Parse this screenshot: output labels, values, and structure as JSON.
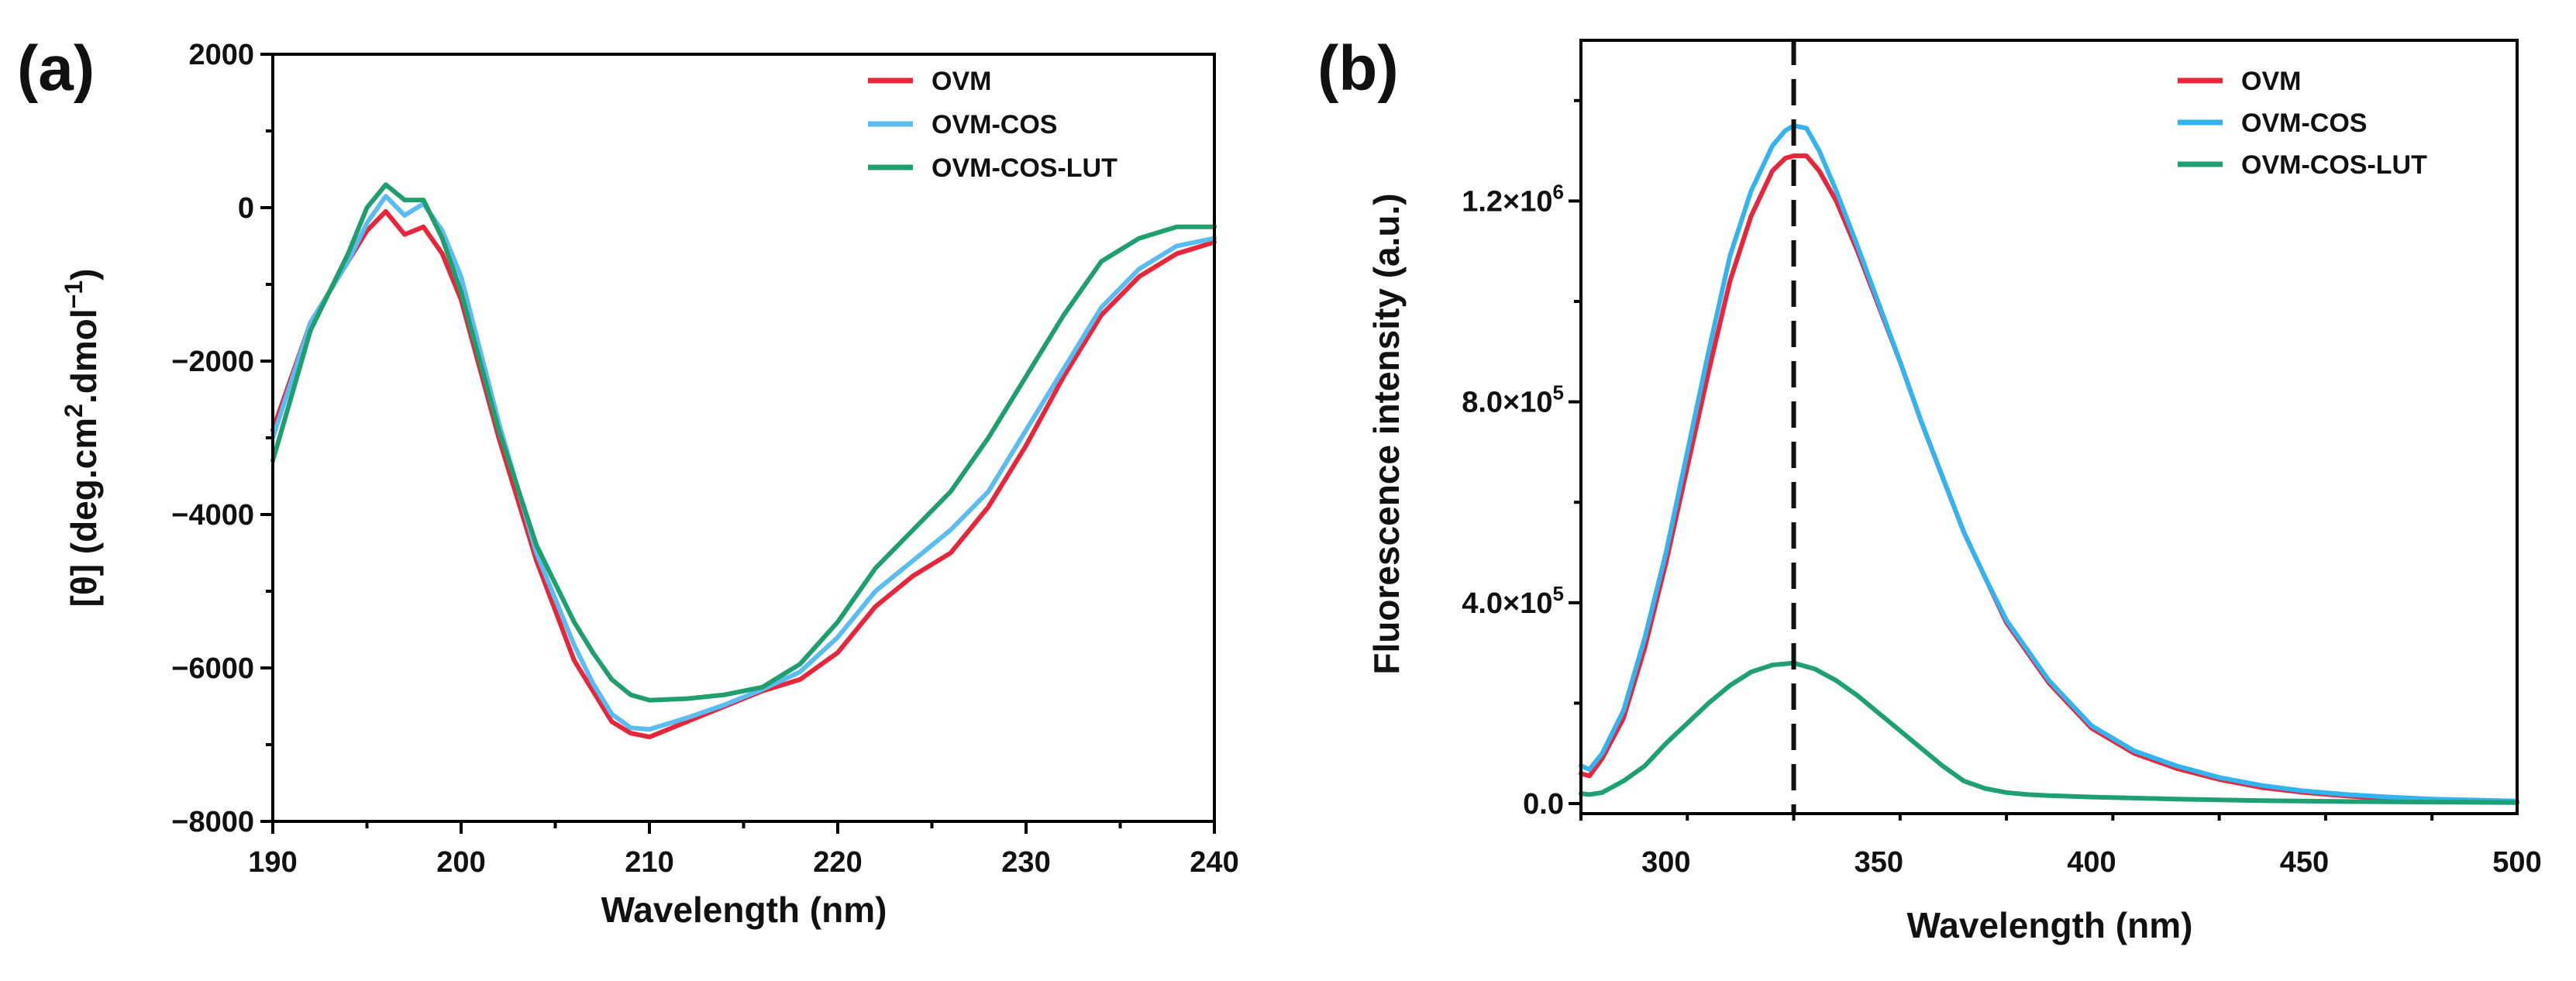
{
  "chart_data": [
    {
      "panel_label": "(a)",
      "type": "line",
      "xlabel": "Wavelength (nm)",
      "ylabel_parts": [
        "[θ] (deg.cm",
        "2",
        ".dmol",
        "−1",
        ")"
      ],
      "xlim": [
        190,
        240
      ],
      "ylim": [
        -8000,
        2000
      ],
      "xticks": [
        190,
        200,
        210,
        220,
        230,
        240
      ],
      "yticks": [
        -8000,
        -6000,
        -4000,
        -2000,
        0,
        2000
      ],
      "xtick_labels": [
        "190",
        "200",
        "210",
        "220",
        "230",
        "240"
      ],
      "ytick_labels": [
        "−8000",
        "−6000",
        "−4000",
        "−2000",
        "0",
        "2000"
      ],
      "legend_position": "top-right",
      "series": [
        {
          "name": "OVM",
          "color": "#e8253a",
          "x": [
            190,
            192,
            194,
            195,
            196,
            197,
            198,
            199,
            200,
            202,
            204,
            206,
            207,
            208,
            209,
            210,
            212,
            214,
            216,
            218,
            220,
            222,
            224,
            226,
            228,
            230,
            232,
            234,
            236,
            238,
            240
          ],
          "y": [
            -2900,
            -1500,
            -700,
            -300,
            -50,
            -350,
            -250,
            -600,
            -1200,
            -3000,
            -4600,
            -5900,
            -6300,
            -6700,
            -6850,
            -6900,
            -6700,
            -6500,
            -6300,
            -6150,
            -5800,
            -5200,
            -4800,
            -4500,
            -3900,
            -3100,
            -2200,
            -1400,
            -900,
            -600,
            -450
          ]
        },
        {
          "name": "OVM-COS",
          "color": "#5bbcf2",
          "x": [
            190,
            192,
            194,
            195,
            196,
            197,
            198,
            199,
            200,
            202,
            204,
            206,
            207,
            208,
            209,
            210,
            212,
            214,
            216,
            218,
            220,
            222,
            224,
            226,
            228,
            230,
            232,
            234,
            236,
            238,
            240
          ],
          "y": [
            -3000,
            -1500,
            -700,
            -200,
            150,
            -100,
            50,
            -300,
            -900,
            -2800,
            -4500,
            -5700,
            -6200,
            -6600,
            -6780,
            -6800,
            -6650,
            -6480,
            -6280,
            -6050,
            -5600,
            -5000,
            -4600,
            -4200,
            -3700,
            -2900,
            -2100,
            -1300,
            -800,
            -500,
            -400
          ]
        },
        {
          "name": "OVM-COS-LUT",
          "color": "#1f9e6e",
          "x": [
            190,
            192,
            194,
            195,
            196,
            197,
            198,
            199,
            200,
            202,
            204,
            206,
            207,
            208,
            209,
            210,
            212,
            214,
            216,
            218,
            220,
            222,
            224,
            226,
            228,
            230,
            232,
            234,
            236,
            238,
            240
          ],
          "y": [
            -3300,
            -1600,
            -600,
            0,
            300,
            100,
            100,
            -400,
            -1100,
            -2900,
            -4400,
            -5400,
            -5800,
            -6150,
            -6350,
            -6420,
            -6400,
            -6350,
            -6250,
            -5950,
            -5400,
            -4700,
            -4200,
            -3700,
            -3000,
            -2200,
            -1400,
            -700,
            -400,
            -250,
            -250
          ]
        }
      ]
    },
    {
      "panel_label": "(b)",
      "type": "line",
      "xlabel": "Wavelength (nm)",
      "ylabel": "Fluorescence intensity (a.u.)",
      "xlim": [
        280,
        500
      ],
      "ylim": [
        -20000,
        1520000
      ],
      "xticks": [
        300,
        350,
        400,
        450,
        500
      ],
      "xtick_labels": [
        "300",
        "350",
        "400",
        "450",
        "500"
      ],
      "yticks": [
        0,
        400000,
        800000,
        1200000
      ],
      "ytick_labels": [
        {
          "mantissa": "0.0",
          "exp": ""
        },
        {
          "mantissa": "4.0×10",
          "exp": "5"
        },
        {
          "mantissa": "8.0×10",
          "exp": "5"
        },
        {
          "mantissa": "1.2×10",
          "exp": "6"
        }
      ],
      "reference_line_x": 330,
      "legend_position": "top-right",
      "series": [
        {
          "name": "OVM",
          "color": "#e8253a",
          "x": [
            280,
            282,
            285,
            290,
            295,
            300,
            305,
            310,
            315,
            320,
            325,
            328,
            330,
            333,
            336,
            340,
            345,
            350,
            355,
            360,
            365,
            370,
            375,
            380,
            390,
            400,
            410,
            420,
            430,
            440,
            450,
            460,
            470,
            480,
            490,
            500
          ],
          "y": [
            60000,
            55000,
            90000,
            170000,
            310000,
            480000,
            670000,
            860000,
            1040000,
            1170000,
            1260000,
            1285000,
            1290000,
            1290000,
            1260000,
            1200000,
            1100000,
            990000,
            880000,
            760000,
            650000,
            540000,
            450000,
            360000,
            240000,
            150000,
            100000,
            70000,
            48000,
            32000,
            22000,
            15000,
            10000,
            7000,
            5000,
            3000
          ]
        },
        {
          "name": "OVM-COS",
          "color": "#33b3f0",
          "x": [
            280,
            282,
            285,
            290,
            295,
            300,
            305,
            310,
            315,
            320,
            325,
            328,
            330,
            333,
            336,
            340,
            345,
            350,
            355,
            360,
            365,
            370,
            375,
            380,
            390,
            400,
            410,
            420,
            430,
            440,
            450,
            460,
            470,
            480,
            490,
            500
          ],
          "y": [
            75000,
            68000,
            100000,
            185000,
            330000,
            500000,
            700000,
            900000,
            1090000,
            1220000,
            1310000,
            1340000,
            1350000,
            1345000,
            1300000,
            1220000,
            1110000,
            995000,
            880000,
            760000,
            650000,
            540000,
            450000,
            365000,
            245000,
            155000,
            105000,
            75000,
            52000,
            36000,
            25000,
            18000,
            13000,
            9000,
            7000,
            5000
          ]
        },
        {
          "name": "OVM-COS-LUT",
          "color": "#1fa074",
          "x": [
            280,
            282,
            285,
            290,
            295,
            300,
            305,
            310,
            315,
            320,
            325,
            330,
            335,
            340,
            345,
            350,
            355,
            360,
            365,
            370,
            375,
            380,
            385,
            390,
            400,
            420,
            440,
            460,
            480,
            500
          ],
          "y": [
            20000,
            18000,
            22000,
            45000,
            75000,
            120000,
            160000,
            200000,
            235000,
            262000,
            276000,
            280000,
            268000,
            245000,
            215000,
            180000,
            145000,
            110000,
            75000,
            45000,
            30000,
            22000,
            18000,
            16000,
            13000,
            9000,
            6000,
            4000,
            3000,
            2000
          ]
        }
      ]
    }
  ]
}
